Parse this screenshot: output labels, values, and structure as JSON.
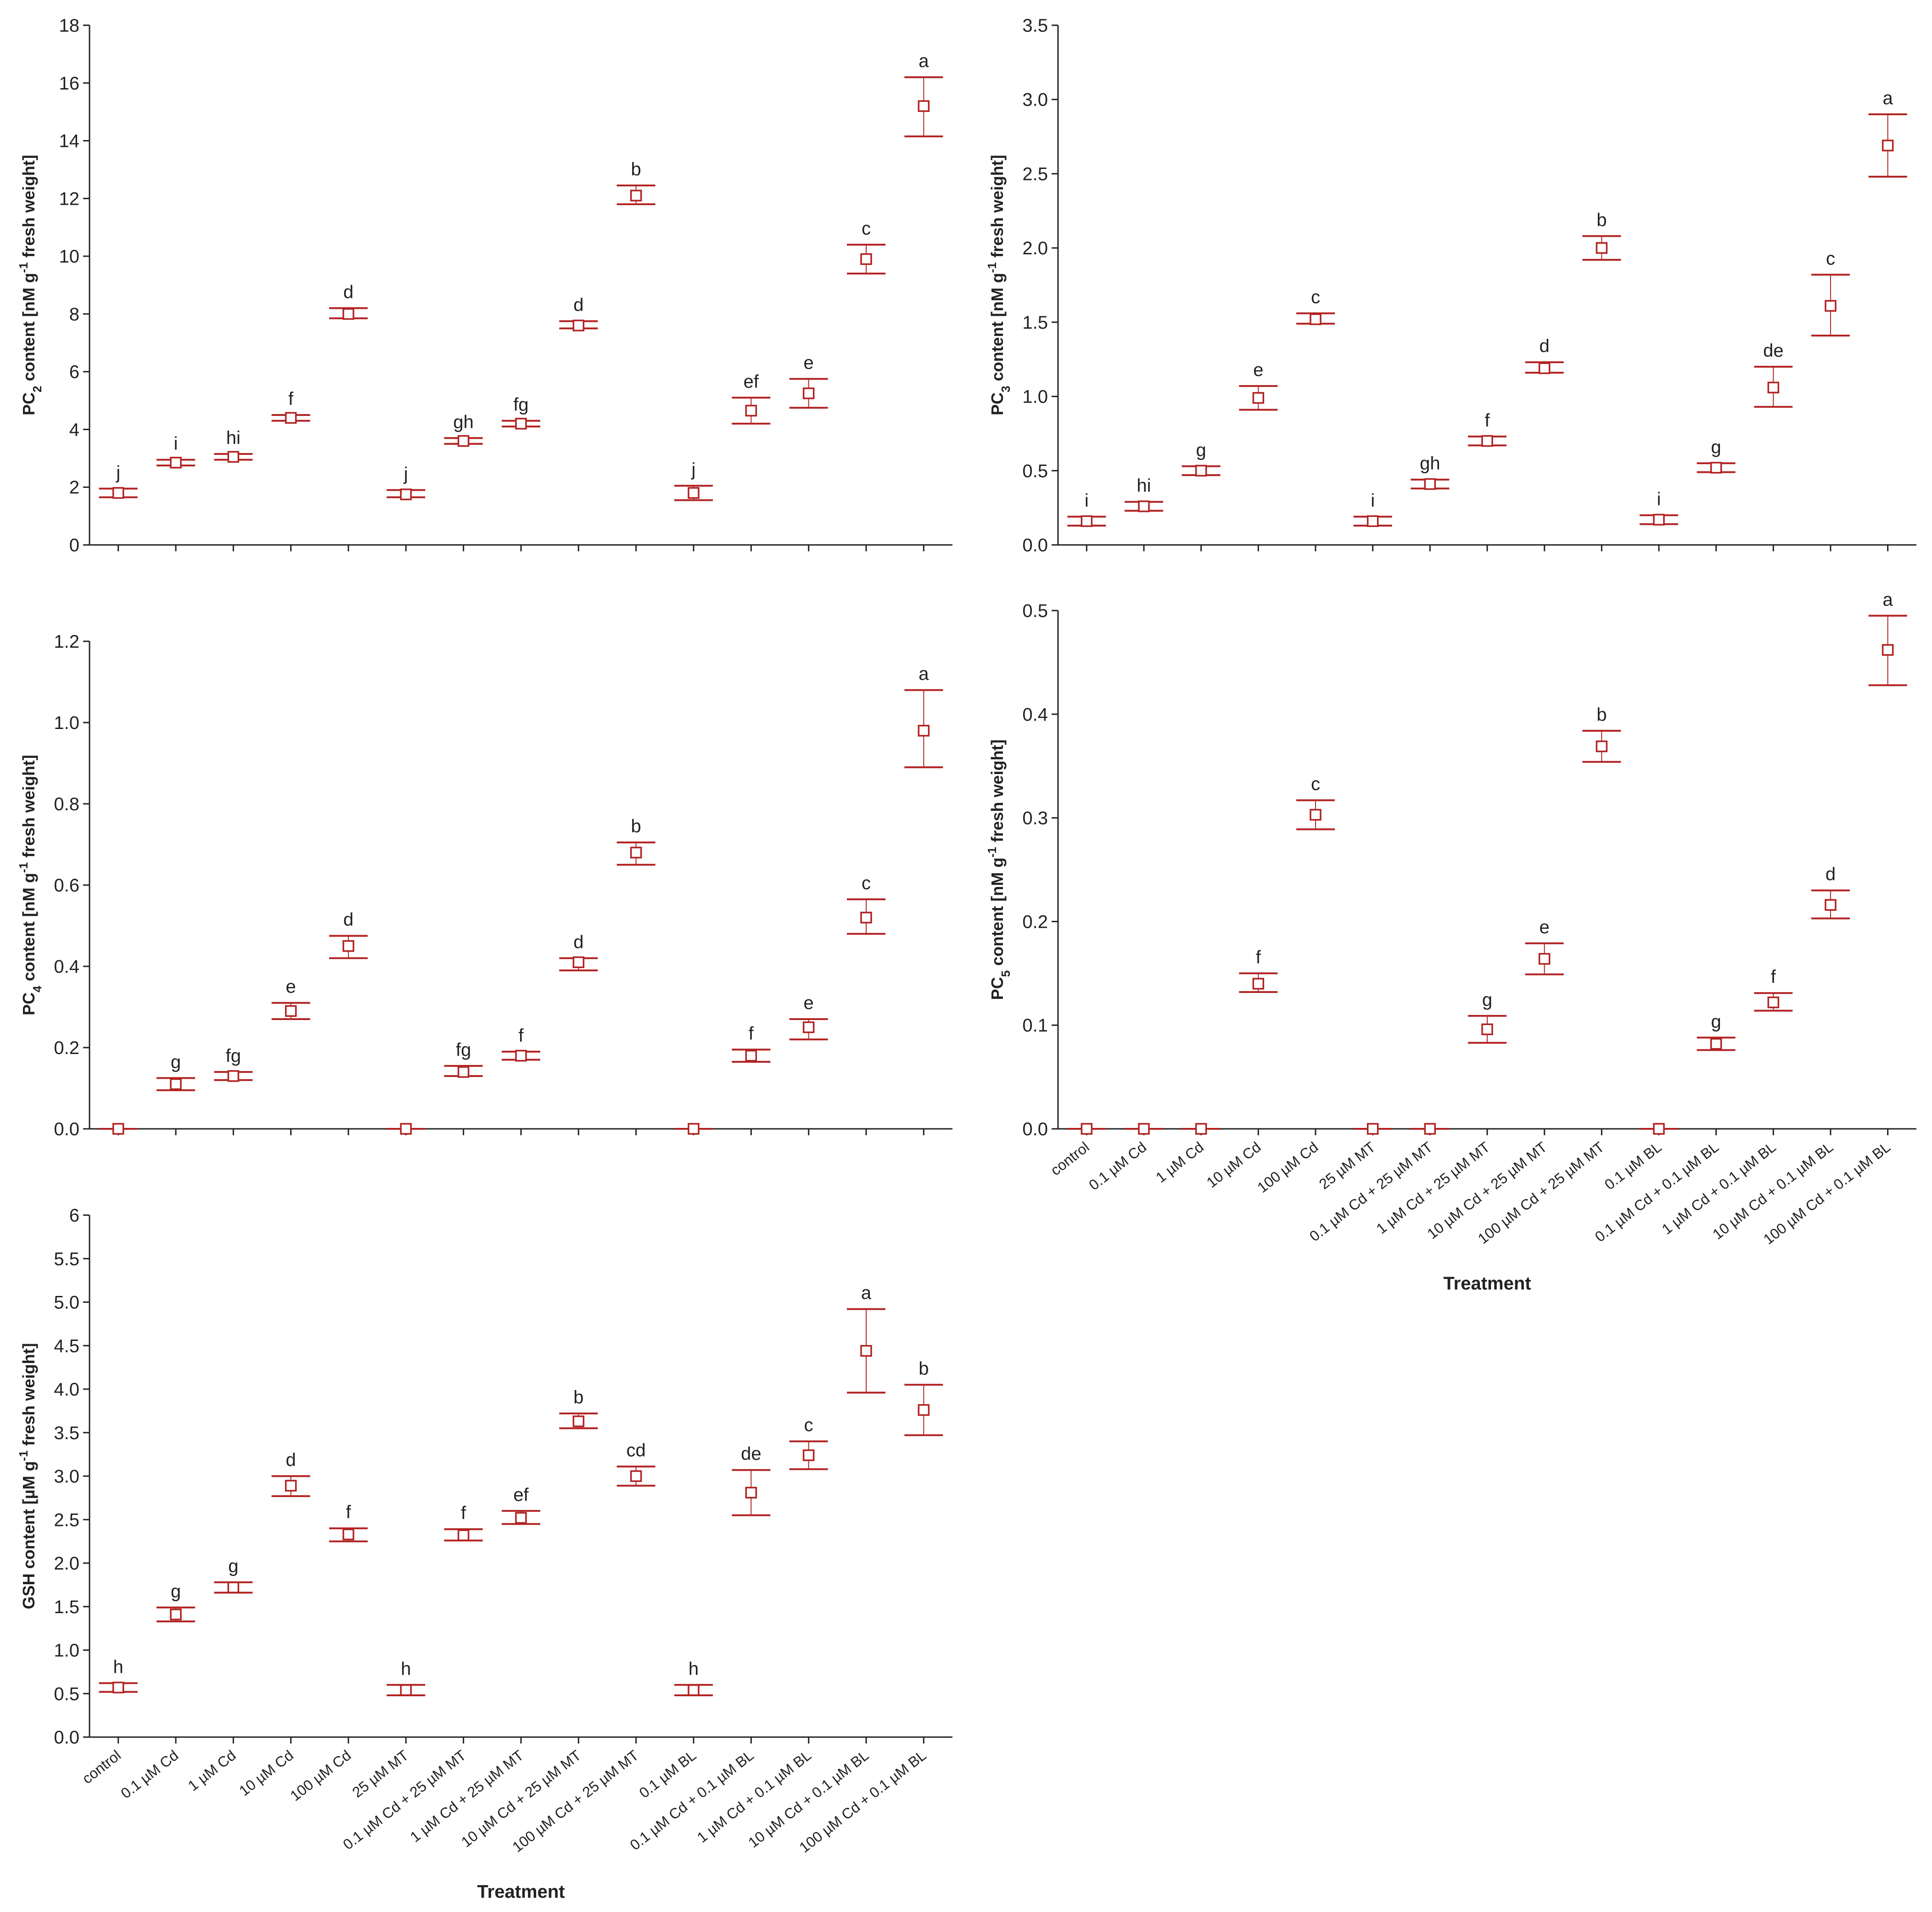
{
  "figure": {
    "categories": [
      "control",
      "0.1 µM Cd",
      "1 µM Cd",
      "10 µM Cd",
      "100 µM Cd",
      "25 µM MT",
      "0.1 µM Cd + 25 µM MT",
      "1 µM Cd + 25 µM MT",
      "10 µM Cd + 25 µM MT",
      "100 µM Cd + 25 µM MT",
      "0.1 µM BL",
      "0.1 µM Cd + 0.1 µM BL",
      "1 µM Cd + 0.1 µM BL",
      "10 µM Cd + 0.1 µM BL",
      "100 µM Cd + 0.1 µM BL"
    ],
    "xlabel": "Treatment",
    "marker_color": "#b22222"
  },
  "chart_data": [
    {
      "type": "scatter",
      "id": "pc2",
      "ylabel_pre": "PC",
      "ylabel_sub": "2",
      "ylabel_mid": " content [nM g",
      "ylabel_sup": "-1",
      "ylabel_post": " fresh weight]",
      "ylim": [
        0,
        18
      ],
      "yticks": [
        "0",
        "2",
        "4",
        "6",
        "8",
        "10",
        "12",
        "14",
        "16",
        "18"
      ],
      "means": [
        1.8,
        2.85,
        3.05,
        4.4,
        8.0,
        1.75,
        3.6,
        4.2,
        7.6,
        12.1,
        1.8,
        4.65,
        5.25,
        9.9,
        15.2
      ],
      "low": [
        1.65,
        2.75,
        2.95,
        4.3,
        7.85,
        1.65,
        3.5,
        4.1,
        7.5,
        11.8,
        1.55,
        4.2,
        4.75,
        9.4,
        14.15
      ],
      "high": [
        1.95,
        2.95,
        3.15,
        4.5,
        8.2,
        1.9,
        3.7,
        4.3,
        7.75,
        12.45,
        2.05,
        5.1,
        5.75,
        10.4,
        16.2
      ],
      "letters": [
        "j",
        "i",
        "hi",
        "f",
        "d",
        "j",
        "gh",
        "fg",
        "d",
        "b",
        "j",
        "ef",
        "e",
        "c",
        "a"
      ]
    },
    {
      "type": "scatter",
      "id": "pc3",
      "ylabel_pre": "PC",
      "ylabel_sub": "3",
      "ylabel_mid": " content [nM g",
      "ylabel_sup": "-1",
      "ylabel_post": " fresh weight]",
      "ylim": [
        0,
        3.5
      ],
      "yticks": [
        "0.0",
        "0.5",
        "1.0",
        "1.5",
        "2.0",
        "2.5",
        "3.0",
        "3.5"
      ],
      "means": [
        0.16,
        0.26,
        0.5,
        0.99,
        1.52,
        0.16,
        0.41,
        0.7,
        1.19,
        2.0,
        0.17,
        0.52,
        1.06,
        1.61,
        2.69
      ],
      "low": [
        0.13,
        0.23,
        0.47,
        0.91,
        1.49,
        0.13,
        0.38,
        0.67,
        1.16,
        1.92,
        0.14,
        0.49,
        0.93,
        1.41,
        2.48
      ],
      "high": [
        0.19,
        0.29,
        0.53,
        1.07,
        1.56,
        0.19,
        0.44,
        0.73,
        1.23,
        2.08,
        0.2,
        0.55,
        1.2,
        1.82,
        2.9
      ],
      "letters": [
        "i",
        "hi",
        "g",
        "e",
        "c",
        "i",
        "gh",
        "f",
        "d",
        "b",
        "i",
        "g",
        "de",
        "c",
        "a"
      ]
    },
    {
      "type": "scatter",
      "id": "pc4",
      "ylabel_pre": "PC",
      "ylabel_sub": "4",
      "ylabel_mid": " content [nM g",
      "ylabel_sup": "-1",
      "ylabel_post": " fresh weight]",
      "ylim": [
        0,
        1.2
      ],
      "yticks": [
        "0.0",
        "0.2",
        "0.4",
        "0.6",
        "0.8",
        "1.0",
        "1.2"
      ],
      "means": [
        0,
        0.11,
        0.13,
        0.29,
        0.45,
        0,
        0.14,
        0.18,
        0.41,
        0.68,
        0,
        0.18,
        0.25,
        0.52,
        0.98
      ],
      "low": [
        0,
        0.095,
        0.12,
        0.27,
        0.42,
        0,
        0.13,
        0.17,
        0.39,
        0.65,
        0,
        0.165,
        0.22,
        0.48,
        0.89
      ],
      "high": [
        0,
        0.125,
        0.14,
        0.31,
        0.475,
        0,
        0.155,
        0.19,
        0.42,
        0.705,
        0,
        0.195,
        0.27,
        0.565,
        1.08
      ],
      "letters": [
        "",
        "g",
        "fg",
        "e",
        "d",
        "",
        "fg",
        "f",
        "d",
        "b",
        "",
        "f",
        "e",
        "c",
        "a"
      ]
    },
    {
      "type": "scatter",
      "id": "pc5",
      "ylabel_pre": "PC",
      "ylabel_sub": "5",
      "ylabel_mid": " content [nM g",
      "ylabel_sup": "-1",
      "ylabel_post": " fresh weight]",
      "ylim": [
        0,
        0.5
      ],
      "yticks": [
        "0.0",
        "0.1",
        "0.2",
        "0.3",
        "0.4",
        "0.5"
      ],
      "means": [
        0,
        0,
        0,
        0.14,
        0.303,
        0,
        0,
        0.096,
        0.164,
        0.369,
        0,
        0.082,
        0.122,
        0.216,
        0.462
      ],
      "low": [
        0,
        0,
        0,
        0.132,
        0.289,
        0,
        0,
        0.083,
        0.149,
        0.354,
        0,
        0.076,
        0.114,
        0.203,
        0.428
      ],
      "high": [
        0,
        0,
        0,
        0.15,
        0.317,
        0,
        0,
        0.109,
        0.179,
        0.384,
        0,
        0.088,
        0.131,
        0.23,
        0.495
      ],
      "letters": [
        "",
        "",
        "",
        "f",
        "c",
        "",
        "",
        "g",
        "e",
        "b",
        "",
        "g",
        "f",
        "d",
        "a"
      ]
    },
    {
      "type": "scatter",
      "id": "gsh",
      "ylabel_pre": "GSH content [µM g",
      "ylabel_sub": "",
      "ylabel_mid": "",
      "ylabel_sup": "-1",
      "ylabel_post": " fresh weight]",
      "ylim": [
        0,
        6
      ],
      "yticks": [
        "0.0",
        "0.5",
        "1.0",
        "1.5",
        "2.0",
        "2.5",
        "3.0",
        "3.5",
        "4.0",
        "4.5",
        "5.0",
        "5.5",
        "6"
      ],
      "means": [
        0.57,
        1.41,
        1.72,
        2.89,
        2.33,
        0.54,
        2.32,
        2.52,
        3.63,
        3.0,
        0.54,
        2.81,
        3.24,
        4.44,
        3.76
      ],
      "low": [
        0.52,
        1.33,
        1.66,
        2.77,
        2.25,
        0.48,
        2.26,
        2.45,
        3.55,
        2.89,
        0.48,
        2.55,
        3.08,
        3.96,
        3.47
      ],
      "high": [
        0.62,
        1.49,
        1.78,
        3.0,
        2.4,
        0.6,
        2.39,
        2.6,
        3.72,
        3.11,
        0.6,
        3.07,
        3.4,
        4.92,
        4.05
      ],
      "letters": [
        "h",
        "g",
        "g",
        "d",
        "f",
        "h",
        "f",
        "ef",
        "b",
        "cd",
        "h",
        "de",
        "c",
        "a",
        "b"
      ]
    }
  ]
}
